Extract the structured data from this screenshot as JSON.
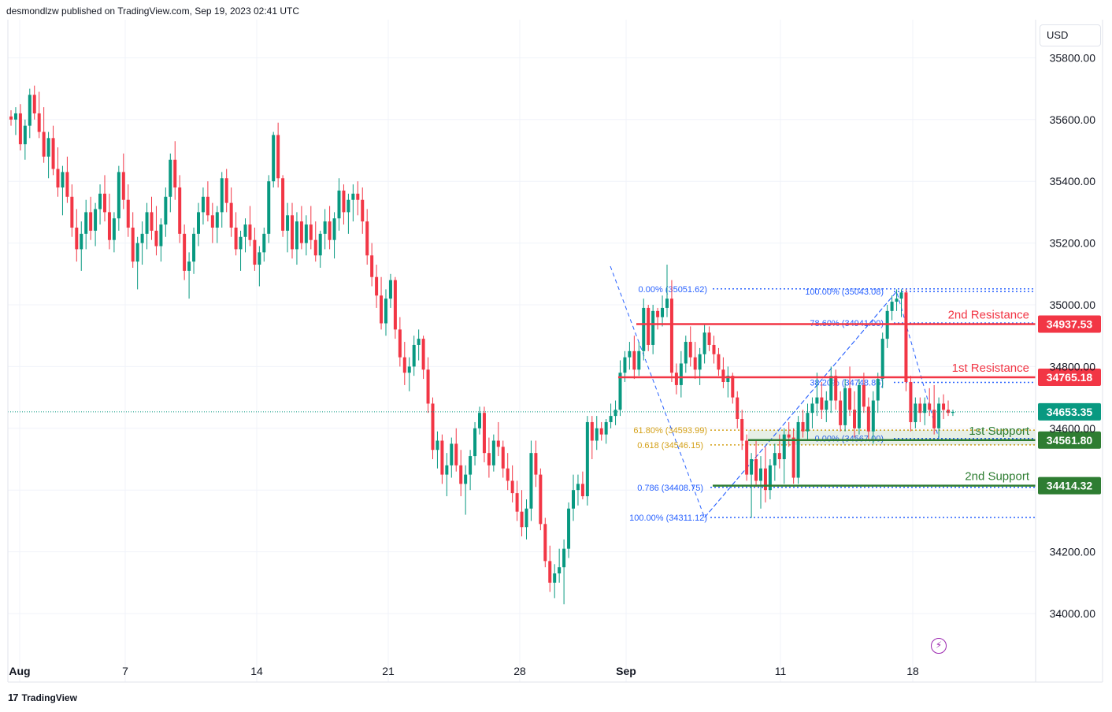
{
  "header": {
    "published_by": "desmondlzw published on TradingView.com, Sep 19, 2023 02:41 UTC"
  },
  "currency": "USD",
  "footer": {
    "brand": "TradingView"
  },
  "colors": {
    "up": "#089981",
    "down": "#f23645",
    "resistance": "#f23645",
    "support": "#2e7d32",
    "fib_blue": "#2962ff",
    "fib_gold": "#d4a017",
    "grid": "#f0f3fa",
    "current_price": "#089981"
  },
  "chart_data": {
    "type": "candlestick",
    "y_axis": {
      "range": [
        33900,
        36000
      ],
      "ticks": [
        34000,
        34200,
        34400,
        34600,
        34800,
        35000,
        35200,
        35400,
        35600,
        35800
      ],
      "tick_labels": [
        "34000.00",
        "34200.00",
        "",
        "34600.00",
        "34800.00",
        "35000.00",
        "35200.00",
        "35400.00",
        "35600.00",
        "35800.00"
      ]
    },
    "x_axis": {
      "labels": [
        "Aug",
        "7",
        "14",
        "21",
        "28",
        "Sep",
        "11",
        "18"
      ],
      "bold_labels": [
        "Aug",
        "Sep"
      ]
    },
    "current_price": 34653.35,
    "candles": [
      [
        35610,
        35630,
        35580,
        35600
      ],
      [
        35600,
        35640,
        35550,
        35620
      ],
      [
        35620,
        35650,
        35500,
        35520
      ],
      [
        35520,
        35600,
        35470,
        35580
      ],
      [
        35580,
        35700,
        35540,
        35680
      ],
      [
        35680,
        35710,
        35600,
        35620
      ],
      [
        35620,
        35690,
        35540,
        35560
      ],
      [
        35560,
        35640,
        35460,
        35480
      ],
      [
        35480,
        35560,
        35410,
        35540
      ],
      [
        35540,
        35580,
        35420,
        35440
      ],
      [
        35440,
        35510,
        35350,
        35380
      ],
      [
        35380,
        35450,
        35290,
        35430
      ],
      [
        35430,
        35480,
        35330,
        35350
      ],
      [
        35350,
        35390,
        35220,
        35250
      ],
      [
        35250,
        35310,
        35140,
        35180
      ],
      [
        35180,
        35270,
        35110,
        35230
      ],
      [
        35230,
        35340,
        35180,
        35300
      ],
      [
        35300,
        35350,
        35210,
        35240
      ],
      [
        35240,
        35330,
        35190,
        35310
      ],
      [
        35310,
        35390,
        35260,
        35360
      ],
      [
        35360,
        35420,
        35270,
        35300
      ],
      [
        35300,
        35360,
        35180,
        35210
      ],
      [
        35210,
        35300,
        35170,
        35280
      ],
      [
        35280,
        35450,
        35240,
        35430
      ],
      [
        35430,
        35490,
        35310,
        35340
      ],
      [
        35340,
        35390,
        35220,
        35250
      ],
      [
        35250,
        35300,
        35120,
        35140
      ],
      [
        35140,
        35220,
        35050,
        35200
      ],
      [
        35200,
        35270,
        35130,
        35230
      ],
      [
        35230,
        35330,
        35180,
        35300
      ],
      [
        35300,
        35350,
        35210,
        35240
      ],
      [
        35240,
        35320,
        35160,
        35190
      ],
      [
        35190,
        35280,
        35140,
        35260
      ],
      [
        35260,
        35380,
        35220,
        35350
      ],
      [
        35350,
        35490,
        35300,
        35470
      ],
      [
        35470,
        35530,
        35340,
        35380
      ],
      [
        35380,
        35420,
        35200,
        35230
      ],
      [
        35230,
        35260,
        35080,
        35110
      ],
      [
        35110,
        35170,
        35020,
        35140
      ],
      [
        35140,
        35250,
        35100,
        35230
      ],
      [
        35230,
        35330,
        35190,
        35300
      ],
      [
        35300,
        35380,
        35260,
        35350
      ],
      [
        35350,
        35400,
        35270,
        35290
      ],
      [
        35290,
        35330,
        35200,
        35250
      ],
      [
        35250,
        35320,
        35200,
        35300
      ],
      [
        35300,
        35430,
        35250,
        35410
      ],
      [
        35410,
        35440,
        35300,
        35330
      ],
      [
        35330,
        35380,
        35220,
        35250
      ],
      [
        35250,
        35300,
        35160,
        35180
      ],
      [
        35180,
        35240,
        35110,
        35220
      ],
      [
        35220,
        35280,
        35170,
        35260
      ],
      [
        35260,
        35320,
        35190,
        35210
      ],
      [
        35210,
        35250,
        35110,
        35130
      ],
      [
        35130,
        35190,
        35060,
        35170
      ],
      [
        35170,
        35250,
        35140,
        35230
      ],
      [
        35230,
        35420,
        35200,
        35400
      ],
      [
        35400,
        35560,
        35380,
        35550
      ],
      [
        35550,
        35590,
        35380,
        35410
      ],
      [
        35410,
        35420,
        35220,
        35240
      ],
      [
        35240,
        35330,
        35170,
        35290
      ],
      [
        35290,
        35330,
        35150,
        35180
      ],
      [
        35180,
        35300,
        35130,
        35270
      ],
      [
        35270,
        35320,
        35180,
        35200
      ],
      [
        35200,
        35290,
        35160,
        35260
      ],
      [
        35260,
        35320,
        35180,
        35210
      ],
      [
        35210,
        35270,
        35140,
        35160
      ],
      [
        35160,
        35240,
        35120,
        35230
      ],
      [
        35230,
        35310,
        35180,
        35270
      ],
      [
        35270,
        35320,
        35180,
        35210
      ],
      [
        35210,
        35300,
        35150,
        35280
      ],
      [
        35280,
        35410,
        35240,
        35370
      ],
      [
        35370,
        35390,
        35260,
        35300
      ],
      [
        35300,
        35360,
        35230,
        35340
      ],
      [
        35340,
        35390,
        35270,
        35360
      ],
      [
        35360,
        35400,
        35290,
        35340
      ],
      [
        35340,
        35380,
        35230,
        35270
      ],
      [
        35270,
        35310,
        35130,
        35160
      ],
      [
        35160,
        35200,
        35060,
        35090
      ],
      [
        35090,
        35130,
        34990,
        35030
      ],
      [
        35030,
        35090,
        34920,
        34940
      ],
      [
        34940,
        35050,
        34900,
        35020
      ],
      [
        35020,
        35100,
        34990,
        35080
      ],
      [
        35080,
        35090,
        34890,
        34920
      ],
      [
        34920,
        34960,
        34800,
        34830
      ],
      [
        34830,
        34880,
        34740,
        34780
      ],
      [
        34780,
        34830,
        34720,
        34800
      ],
      [
        34800,
        34900,
        34770,
        34870
      ],
      [
        34870,
        34920,
        34820,
        34890
      ],
      [
        34890,
        34900,
        34760,
        34790
      ],
      [
        34790,
        34830,
        34650,
        34680
      ],
      [
        34680,
        34700,
        34500,
        34530
      ],
      [
        34530,
        34590,
        34470,
        34560
      ],
      [
        34560,
        34580,
        34420,
        34450
      ],
      [
        34450,
        34520,
        34380,
        34480
      ],
      [
        34480,
        34570,
        34440,
        34550
      ],
      [
        34550,
        34600,
        34460,
        34480
      ],
      [
        34480,
        34530,
        34380,
        34420
      ],
      [
        34420,
        34480,
        34320,
        34450
      ],
      [
        34450,
        34530,
        34400,
        34510
      ],
      [
        34510,
        34620,
        34480,
        34600
      ],
      [
        34600,
        34670,
        34580,
        34650
      ],
      [
        34650,
        34670,
        34490,
        34520
      ],
      [
        34520,
        34570,
        34440,
        34480
      ],
      [
        34480,
        34580,
        34460,
        34560
      ],
      [
        34560,
        34620,
        34510,
        34540
      ],
      [
        34540,
        34560,
        34440,
        34470
      ],
      [
        34470,
        34520,
        34400,
        34430
      ],
      [
        34430,
        34480,
        34360,
        34390
      ],
      [
        34390,
        34430,
        34300,
        34330
      ],
      [
        34330,
        34400,
        34250,
        34280
      ],
      [
        34280,
        34370,
        34240,
        34340
      ],
      [
        34340,
        34560,
        34300,
        34520
      ],
      [
        34520,
        34560,
        34410,
        34450
      ],
      [
        34450,
        34470,
        34270,
        34290
      ],
      [
        34290,
        34310,
        34150,
        34170
      ],
      [
        34170,
        34220,
        34070,
        34100
      ],
      [
        34100,
        34160,
        34050,
        34130
      ],
      [
        34130,
        34210,
        34100,
        34150
      ],
      [
        34150,
        34240,
        34030,
        34210
      ],
      [
        34210,
        34360,
        34180,
        34340
      ],
      [
        34340,
        34450,
        34300,
        34400
      ],
      [
        34400,
        34450,
        34350,
        34420
      ],
      [
        34420,
        34460,
        34370,
        34380
      ],
      [
        34380,
        34640,
        34350,
        34620
      ],
      [
        34620,
        34640,
        34500,
        34560
      ],
      [
        34560,
        34640,
        34530,
        34600
      ],
      [
        34600,
        34620,
        34560,
        34580
      ],
      [
        34580,
        34630,
        34550,
        34620
      ],
      [
        34620,
        34680,
        34600,
        34640
      ],
      [
        34640,
        34690,
        34610,
        34660
      ],
      [
        34660,
        34820,
        34640,
        34780
      ],
      [
        34780,
        34850,
        34750,
        34830
      ],
      [
        34830,
        34880,
        34790,
        34850
      ],
      [
        34850,
        34900,
        34760,
        34790
      ],
      [
        34790,
        34880,
        34770,
        34850
      ],
      [
        34850,
        35020,
        34820,
        34990
      ],
      [
        34990,
        35000,
        34850,
        34870
      ],
      [
        34870,
        35000,
        34840,
        34980
      ],
      [
        34980,
        34990,
        34920,
        34960
      ],
      [
        34960,
        35030,
        34930,
        34990
      ],
      [
        34990,
        35130,
        34960,
        35020
      ],
      [
        35020,
        35080,
        34750,
        34780
      ],
      [
        34780,
        34810,
        34710,
        34740
      ],
      [
        34740,
        34850,
        34700,
        34810
      ],
      [
        34810,
        34900,
        34780,
        34880
      ],
      [
        34880,
        34930,
        34800,
        34830
      ],
      [
        34830,
        34880,
        34760,
        34790
      ],
      [
        34790,
        34860,
        34740,
        34840
      ],
      [
        34840,
        34940,
        34810,
        34910
      ],
      [
        34910,
        34930,
        34850,
        34870
      ],
      [
        34870,
        34900,
        34810,
        34840
      ],
      [
        34840,
        34860,
        34770,
        34790
      ],
      [
        34790,
        34830,
        34730,
        34750
      ],
      [
        34750,
        34800,
        34700,
        34770
      ],
      [
        34770,
        34780,
        34680,
        34700
      ],
      [
        34700,
        34720,
        34600,
        34630
      ],
      [
        34630,
        34660,
        34530,
        34560
      ],
      [
        34560,
        34580,
        34430,
        34450
      ],
      [
        34450,
        34520,
        34310,
        34500
      ],
      [
        34500,
        34560,
        34410,
        34430
      ],
      [
        34430,
        34510,
        34340,
        34470
      ],
      [
        34470,
        34540,
        34360,
        34400
      ],
      [
        34400,
        34500,
        34370,
        34480
      ],
      [
        34480,
        34550,
        34430,
        34520
      ],
      [
        34520,
        34580,
        34470,
        34500
      ],
      [
        34500,
        34600,
        34420,
        34580
      ],
      [
        34580,
        34620,
        34540,
        34570
      ],
      [
        34570,
        34600,
        34420,
        34440
      ],
      [
        34440,
        34640,
        34420,
        34620
      ],
      [
        34620,
        34660,
        34570,
        34590
      ],
      [
        34590,
        34680,
        34560,
        34650
      ],
      [
        34650,
        34700,
        34600,
        34680
      ],
      [
        34680,
        34780,
        34640,
        34700
      ],
      [
        34700,
        34750,
        34630,
        34660
      ],
      [
        34660,
        34720,
        34620,
        34690
      ],
      [
        34690,
        34800,
        34650,
        34770
      ],
      [
        34770,
        34790,
        34660,
        34690
      ],
      [
        34690,
        34720,
        34590,
        34610
      ],
      [
        34610,
        34760,
        34590,
        34730
      ],
      [
        34730,
        34800,
        34640,
        34660
      ],
      [
        34660,
        34720,
        34570,
        34600
      ],
      [
        34600,
        34760,
        34580,
        34740
      ],
      [
        34740,
        34780,
        34650,
        34670
      ],
      [
        34670,
        34700,
        34560,
        34590
      ],
      [
        34590,
        34720,
        34550,
        34690
      ],
      [
        34690,
        34780,
        34650,
        34760
      ],
      [
        34760,
        34910,
        34730,
        34890
      ],
      [
        34890,
        35000,
        34860,
        34980
      ],
      [
        34980,
        35030,
        34950,
        35010
      ],
      [
        35010,
        35050,
        34980,
        35020
      ],
      [
        35020,
        35050,
        34960,
        35040
      ],
      [
        35040,
        35050,
        34720,
        34750
      ],
      [
        34750,
        34770,
        34590,
        34620
      ],
      [
        34620,
        34700,
        34600,
        34680
      ],
      [
        34680,
        34700,
        34620,
        34650
      ],
      [
        34650,
        34700,
        34610,
        34680
      ],
      [
        34680,
        34730,
        34640,
        34660
      ],
      [
        34660,
        34740,
        34580,
        34600
      ],
      [
        34600,
        34700,
        34570,
        34680
      ],
      [
        34680,
        34710,
        34630,
        34660
      ],
      [
        34660,
        34690,
        34640,
        34650
      ],
      [
        34650,
        34660,
        34640,
        34653
      ]
    ],
    "horizontal_levels": [
      {
        "name": "2nd Resistance",
        "price": 34937.53,
        "label": "34937.53",
        "kind": "resistance"
      },
      {
        "name": "1st Resistance",
        "price": 34765.18,
        "label": "34765.18",
        "kind": "resistance"
      },
      {
        "name": "1st Support",
        "price": 34561.8,
        "label": "34561.80",
        "kind": "support"
      },
      {
        "name": "2nd Support",
        "price": 34414.32,
        "label": "34414.32",
        "kind": "support"
      }
    ],
    "fib_left": [
      {
        "text": "0.00% (35051.62)",
        "price": 35051.62
      },
      {
        "text": "61.80% (34593.99)",
        "price": 34593.99
      },
      {
        "text": "0.618 (34546.15)",
        "price": 34546.15
      },
      {
        "text": "0.786 (34408.75)",
        "price": 34408.75
      },
      {
        "text": "100.00% (34311.12)",
        "price": 34311.12
      }
    ],
    "fib_right": [
      {
        "text": "100.00% (35043.08)",
        "price": 35043.08
      },
      {
        "text": "78.60% (34941.00)",
        "price": 34941.0
      },
      {
        "text": "38.20% (34748.86)",
        "price": 34748.86
      },
      {
        "text": "0.00% (34567.00)",
        "price": 34567.0
      }
    ],
    "current_price_label": "34653.35"
  }
}
